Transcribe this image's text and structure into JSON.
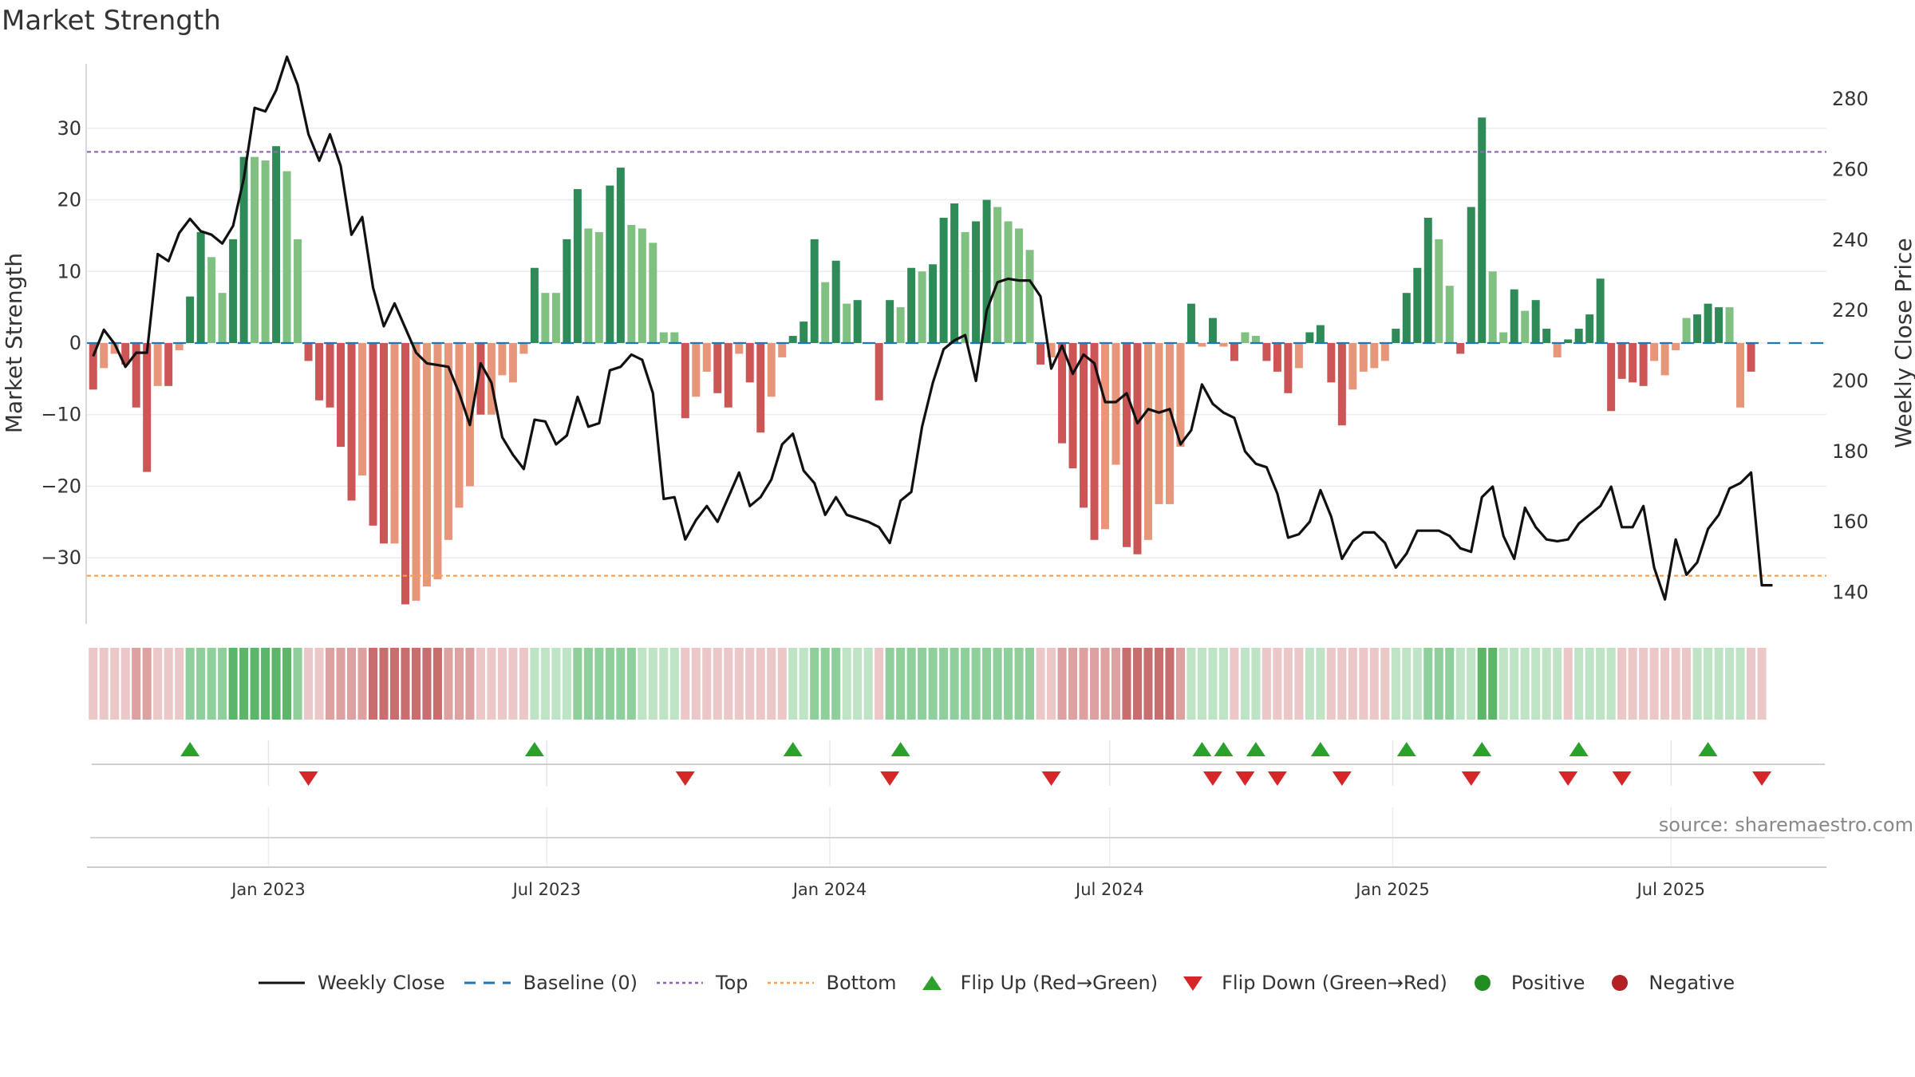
{
  "title": "Market Strength",
  "source": "source: sharemaestro.com",
  "colors": {
    "strong_green": "#2e8b57",
    "light_green": "#80c080",
    "strong_red": "#cc5555",
    "light_red": "#e8967a",
    "line": "#111111",
    "baseline": "#1f77b4",
    "top": "#9467bd",
    "bottom": "#ff9f4a",
    "flip_up": "#2ca02c",
    "flip_down": "#d62728",
    "positive": "#228b22",
    "negative": "#b22222"
  },
  "legend": [
    {
      "key": "line",
      "label": "Weekly Close"
    },
    {
      "key": "baseline",
      "label": "Baseline (0)"
    },
    {
      "key": "top",
      "label": "Top"
    },
    {
      "key": "bottom",
      "label": "Bottom"
    },
    {
      "key": "flip_up",
      "label": "Flip Up (Red→Green)"
    },
    {
      "key": "flip_down",
      "label": "Flip Down (Green→Red)"
    },
    {
      "key": "positive",
      "label": "Positive"
    },
    {
      "key": "negative",
      "label": "Negative"
    }
  ],
  "chart_data": {
    "type": "bar+line",
    "title": "Market Strength",
    "ylabel_left": "Market Strength",
    "ylabel_right": "Weekly Close Price",
    "ylim_left": [
      -39,
      39
    ],
    "yticks_left": [
      30,
      20,
      10,
      0,
      -10,
      -20,
      -30
    ],
    "ytick_labels_left": [
      "30",
      "20",
      "10",
      "0",
      "−10",
      "−20",
      "−30"
    ],
    "ylim_right": [
      131.5,
      290
    ],
    "yticks_right": [
      280,
      260,
      240,
      220,
      200,
      180,
      160,
      140
    ],
    "baseline": 0,
    "top_threshold": 26.7,
    "bottom_threshold": -32.5,
    "x_start": "2022-09-09",
    "x_range": [
      "2022-09-05",
      "2025-10-10"
    ],
    "x_tick_dates": [
      "2023-01-01",
      "2023-07-01",
      "2024-01-01",
      "2024-07-01",
      "2025-01-01",
      "2025-07-01"
    ],
    "x_tick_labels": [
      "Jan 2023",
      "Jul 2023",
      "Jan 2024",
      "Jul 2024",
      "Jan 2025",
      "Jul 2025"
    ],
    "strength": [
      -6.5,
      -3.5,
      -1.5,
      -3,
      -9,
      -18,
      -6,
      -6,
      -1,
      6.5,
      15.5,
      12,
      7,
      14.5,
      26,
      26,
      25.5,
      27.5,
      24,
      14.5,
      -2.5,
      -8,
      -9,
      -14.5,
      -22,
      -18.5,
      -25.5,
      -28,
      -28,
      -36.5,
      -36,
      -34,
      -33,
      -27.5,
      -23,
      -20,
      -10,
      -10,
      -4.5,
      -5.5,
      -1.5,
      10.5,
      7,
      7,
      14.5,
      21.5,
      16,
      15.5,
      22,
      24.5,
      16.5,
      16,
      14,
      1.5,
      1.5,
      -10.5,
      -7.5,
      -4,
      -7,
      -9,
      -1.5,
      -5.5,
      -12.5,
      -7.5,
      -2,
      1,
      3,
      14.5,
      8.5,
      11.5,
      5.5,
      6,
      0,
      -8,
      6,
      5,
      10.5,
      10,
      11,
      17.5,
      19.5,
      15.5,
      17,
      20,
      19,
      17,
      16,
      13,
      -3,
      -2,
      -14,
      -17.5,
      -23,
      -27.5,
      -26,
      -17,
      -28.5,
      -29.5,
      -27.5,
      -22.5,
      -22.5,
      -14.5,
      5.5,
      -0.5,
      3.5,
      -0.5,
      -2.5,
      1.5,
      1,
      -2.5,
      -4,
      -7,
      -3.5,
      1.5,
      2.5,
      -5.5,
      -11.5,
      -6.5,
      -4,
      -3.5,
      -2.5,
      2,
      7,
      10.5,
      17.5,
      14.5,
      8,
      -1.5,
      19,
      31.5,
      10,
      1.5,
      7.5,
      4.5,
      6,
      2,
      -2,
      0.5,
      2,
      4,
      9,
      -9.5,
      -5,
      -5.5,
      -6,
      -2.5,
      -4.5,
      -1,
      3.5,
      4,
      5.5,
      5,
      5,
      -9,
      -4
    ],
    "strong": [
      1,
      0,
      0,
      1,
      1,
      1,
      0,
      1,
      0,
      1,
      1,
      0,
      0,
      1,
      1,
      0,
      0,
      1,
      0,
      0,
      1,
      1,
      1,
      1,
      1,
      0,
      1,
      1,
      0,
      1,
      0,
      0,
      0,
      0,
      0,
      0,
      1,
      0,
      0,
      0,
      0,
      1,
      0,
      0,
      1,
      1,
      0,
      0,
      1,
      1,
      0,
      0,
      0,
      0,
      0,
      1,
      0,
      0,
      1,
      1,
      0,
      1,
      1,
      0,
      0,
      1,
      1,
      1,
      0,
      1,
      0,
      1,
      0,
      1,
      1,
      0,
      1,
      0,
      1,
      1,
      1,
      0,
      1,
      1,
      0,
      0,
      0,
      0,
      1,
      0,
      1,
      1,
      1,
      1,
      0,
      0,
      1,
      1,
      0,
      0,
      0,
      0,
      1,
      0,
      1,
      0,
      1,
      0,
      0,
      1,
      1,
      1,
      0,
      1,
      1,
      1,
      1,
      0,
      0,
      0,
      0,
      1,
      1,
      1,
      1,
      0,
      0,
      1,
      1,
      1,
      0,
      0,
      1,
      0,
      1,
      1,
      0,
      1,
      1,
      1,
      1,
      1,
      1,
      1,
      1,
      0,
      0,
      0,
      0,
      1,
      1,
      1,
      0,
      0,
      1,
      0
    ],
    "close": [
      207,
      214.5,
      210.5,
      204,
      208,
      208,
      236,
      234,
      242,
      246,
      242.5,
      241.5,
      239,
      244,
      257.5,
      277.5,
      276.5,
      282.5,
      292,
      284,
      270,
      262.5,
      270,
      261,
      241.5,
      246.5,
      226.5,
      215.5,
      222,
      215,
      208,
      205,
      204.5,
      204,
      196.5,
      187.5,
      205,
      199.5,
      184,
      179,
      175,
      189,
      188.5,
      182,
      184.5,
      195.5,
      187,
      188,
      203,
      204,
      207.5,
      206,
      196.5,
      166.5,
      167,
      155,
      160.5,
      164.5,
      160,
      167,
      174,
      164.5,
      167,
      172,
      182,
      185,
      174.5,
      171,
      162,
      167,
      162,
      161,
      160,
      158.5,
      154,
      166,
      168.5,
      187,
      199.5,
      209,
      211.5,
      213,
      200,
      220,
      228,
      229,
      228.5,
      228.5,
      224,
      203.5,
      210,
      202,
      207.5,
      205,
      194,
      194,
      196.5,
      188,
      192,
      191,
      192,
      182,
      186,
      199,
      193.5,
      191,
      189.5,
      180,
      176.5,
      175.5,
      168,
      155.5,
      156.5,
      160,
      169,
      161.5,
      149.5,
      154.5,
      157,
      157,
      154,
      147,
      151,
      157.5,
      157.5,
      157.5,
      156,
      152.5,
      151.5,
      167,
      170,
      156,
      149.5,
      164,
      158.5,
      155,
      154.5,
      155,
      159.5,
      162,
      164.5,
      170,
      158.5,
      158.5,
      164.5,
      147,
      138,
      155,
      145,
      148.5,
      158,
      162,
      169.5,
      171,
      174,
      142,
      142
    ],
    "stripe_levels": [
      -1,
      -1,
      -1,
      -1,
      -2,
      -2,
      -1,
      -1,
      -1,
      2,
      2,
      2,
      2,
      3,
      3,
      3,
      3,
      3,
      3,
      2,
      -1,
      -1,
      -2,
      -2,
      -2,
      -2,
      -3,
      -3,
      -3,
      -3,
      -3,
      -3,
      -3,
      -2,
      -2,
      -2,
      -1,
      -1,
      -1,
      -1,
      -1,
      1,
      1,
      1,
      1,
      2,
      2,
      2,
      2,
      2,
      2,
      1,
      1,
      1,
      1,
      -1,
      -1,
      -1,
      -1,
      -1,
      -1,
      -1,
      -1,
      -1,
      -1,
      1,
      1,
      2,
      2,
      2,
      1,
      1,
      1,
      -1,
      2,
      2,
      2,
      2,
      2,
      2,
      2,
      2,
      2,
      2,
      2,
      2,
      2,
      2,
      -1,
      -1,
      -2,
      -2,
      -2,
      -2,
      -2,
      -2,
      -3,
      -3,
      -3,
      -3,
      -3,
      -2,
      1,
      1,
      1,
      1,
      -1,
      1,
      1,
      -1,
      -1,
      -1,
      -1,
      1,
      1,
      -1,
      -1,
      -1,
      -1,
      -1,
      -1,
      1,
      1,
      1,
      2,
      2,
      2,
      1,
      1,
      3,
      3,
      1,
      1,
      1,
      1,
      1,
      1,
      -1,
      1,
      1,
      1,
      1,
      -1,
      -1,
      -1,
      -1,
      -1,
      -1,
      -1,
      1,
      1,
      1,
      1,
      1,
      -1,
      -1
    ],
    "flip_up_weeks": [
      9,
      41,
      65,
      75,
      103,
      105,
      108,
      114,
      122,
      129,
      138,
      150
    ],
    "flip_down_weeks": [
      20,
      55,
      74,
      89,
      104,
      107,
      110,
      116,
      128,
      137,
      142,
      155
    ]
  }
}
